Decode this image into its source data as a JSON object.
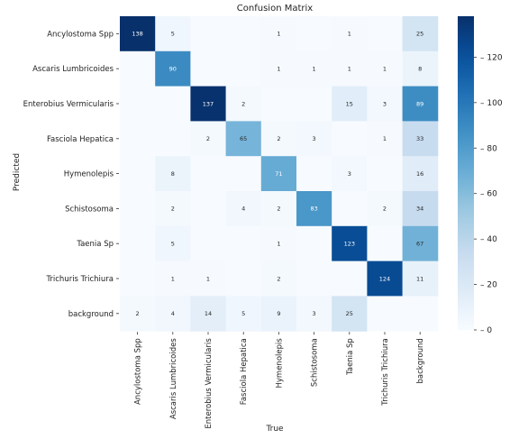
{
  "chart_data": {
    "type": "heatmap",
    "title": "Confusion Matrix",
    "xlabel": "True",
    "ylabel": "Predicted",
    "x_categories": [
      "Ancylostoma Spp",
      "Ascaris Lumbricoides",
      "Enterobius Vermicularis",
      "Fasciola Hepatica",
      "Hymenolepis",
      "Schistosoma",
      "Taenia Sp",
      "Trichuris Trichiura",
      "background"
    ],
    "y_categories": [
      "Ancylostoma Spp",
      "Ascaris Lumbricoides",
      "Enterobius Vermicularis",
      "Fasciola Hepatica",
      "Hymenolepis",
      "Schistosoma",
      "Taenia Sp",
      "Trichuris Trichiura",
      "background"
    ],
    "values": [
      [
        138,
        5,
        null,
        null,
        1,
        null,
        1,
        null,
        25
      ],
      [
        null,
        90,
        null,
        null,
        1,
        1,
        1,
        1,
        8
      ],
      [
        null,
        null,
        137,
        2,
        null,
        null,
        15,
        3,
        89
      ],
      [
        null,
        null,
        2,
        65,
        2,
        3,
        null,
        1,
        33
      ],
      [
        null,
        8,
        null,
        null,
        71,
        null,
        3,
        null,
        16
      ],
      [
        null,
        2,
        null,
        4,
        2,
        83,
        null,
        2,
        34
      ],
      [
        null,
        5,
        null,
        null,
        1,
        null,
        123,
        null,
        67
      ],
      [
        null,
        1,
        1,
        null,
        2,
        null,
        null,
        124,
        11
      ],
      [
        2,
        4,
        14,
        5,
        9,
        3,
        25,
        null,
        null
      ]
    ],
    "colormap": "Blues",
    "color_range": [
      0,
      138
    ],
    "colorbar_ticks": [
      0,
      20,
      40,
      60,
      80,
      100,
      120
    ]
  }
}
